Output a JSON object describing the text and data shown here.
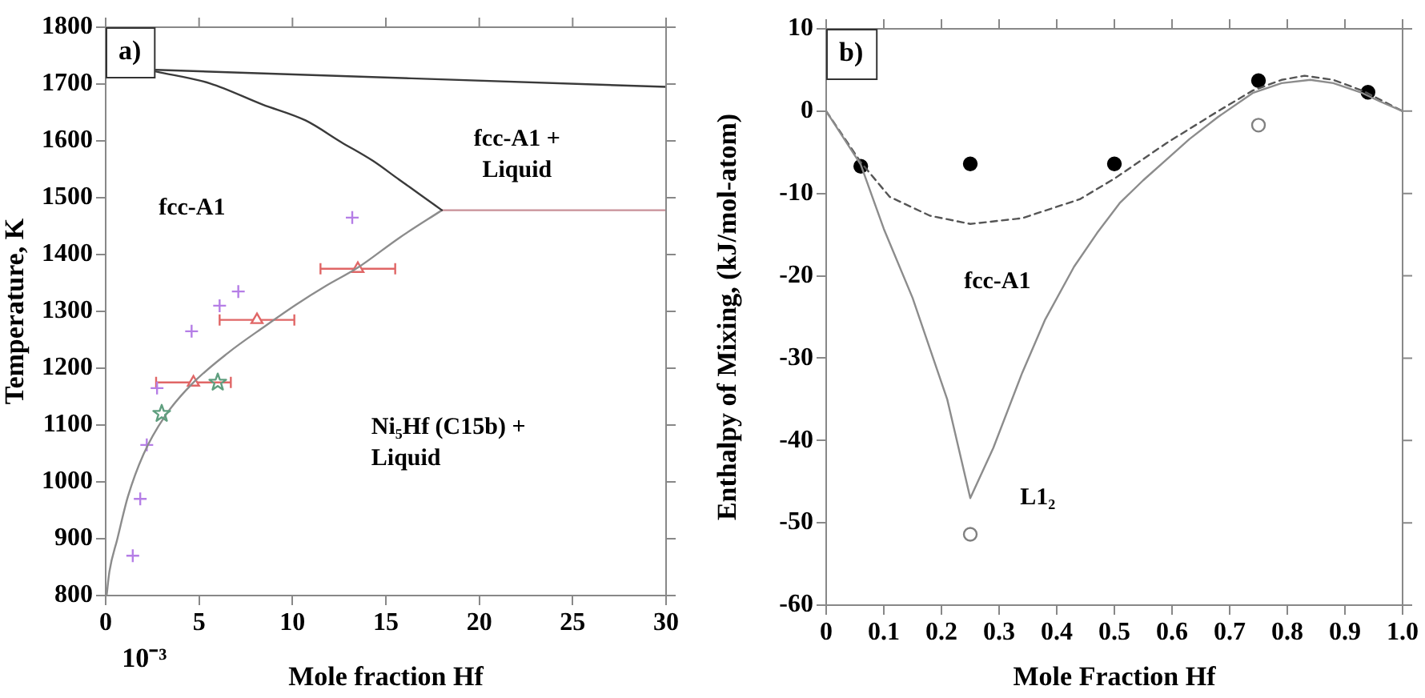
{
  "chart_data": [
    {
      "type": "line",
      "xlabel": "Mole fraction Hf",
      "ylabel": "Temperature, K",
      "xlim": [
        0,
        30
      ],
      "xticks": [
        0,
        5,
        10,
        15,
        20,
        25,
        30
      ],
      "ylim": [
        800,
        1800
      ],
      "yticks": [
        800,
        900,
        1000,
        1100,
        1200,
        1300,
        1400,
        1500,
        1600,
        1700,
        1800
      ],
      "annotations": [
        "a)",
        "fcc-A1",
        "fcc-A1 + Liquid",
        "Ni₅Hf (C15b) + Liquid",
        "10⁻³"
      ],
      "series": [
        {
          "color": "#3a3a3a",
          "x": [
            2.7,
            30
          ],
          "values": [
            1725,
            1695
          ]
        },
        {
          "color": "#3a3a3a",
          "x": [
            2.7,
            5.6,
            8.4,
            10.7,
            12.6,
            14.3,
            15.7,
            16.9,
            18
          ],
          "values": [
            1722,
            1701,
            1664,
            1636,
            1598,
            1565,
            1532,
            1504,
            1478
          ]
        },
        {
          "color": "#c89098",
          "x": [
            18,
            30
          ],
          "values": [
            1478,
            1478
          ]
        },
        {
          "color": "#8c8c8c",
          "x": [
            0.05,
            0.2,
            0.62,
            1.19,
            2.03,
            3.16,
            4.58,
            6.55,
            8.53,
            10.2,
            11.8,
            13.5,
            15.7,
            18
          ],
          "values": [
            800,
            842,
            899,
            974,
            1049,
            1115,
            1171,
            1227,
            1274,
            1312,
            1345,
            1377,
            1429,
            1478
          ]
        },
        {
          "type": "scatter",
          "color": "#b57ee6",
          "marker": "cross",
          "x": [
            1.45,
            1.85,
            2.2,
            2.75,
            4.6,
            6.1,
            7.1,
            13.2
          ],
          "values": [
            870,
            970,
            1065,
            1165,
            1265,
            1310,
            1335,
            1465
          ]
        },
        {
          "type": "scatter",
          "color": "#5f9f7f",
          "marker": "star",
          "x": [
            3,
            6
          ],
          "values": [
            1120,
            1175
          ]
        },
        {
          "type": "scatter",
          "color": "#e06666",
          "marker": "triangle",
          "x": [
            4.7,
            8.1,
            13.5
          ],
          "values": [
            1175,
            1285,
            1375
          ],
          "xerrors": [
            2,
            2,
            2
          ]
        }
      ]
    },
    {
      "type": "line",
      "xlabel": "Mole Fraction Hf",
      "ylabel": "Enthalpy of Mixing, (kJ/mol-atom)",
      "xlim": [
        0,
        1
      ],
      "xticks": [
        0,
        0.1,
        0.2,
        0.3,
        0.4,
        0.5,
        0.6,
        0.7,
        0.8,
        0.9,
        {
          "value": 1,
          "label": "1.0"
        }
      ],
      "ylim": [
        -60,
        10
      ],
      "yticks": [
        -60,
        -50,
        -40,
        -30,
        -20,
        -10,
        0,
        10
      ],
      "annotations": [
        "b)",
        "fcc-A1",
        "L1₂"
      ],
      "series": [
        {
          "color": "#8c8c8c",
          "x": [
            0,
            0.06,
            0.1,
            0.15,
            0.21,
            0.25,
            0.29,
            0.34,
            0.38,
            0.43,
            0.47,
            0.51,
            0.55,
            0.59,
            0.63,
            0.68,
            0.74,
            0.79,
            0.84,
            0.88,
            0.93,
            0.96,
            1
          ],
          "values": [
            0,
            -6.5,
            -14.3,
            -22.7,
            -35,
            -47,
            -40.9,
            -31.8,
            -25.3,
            -18.9,
            -14.8,
            -11.1,
            -8.4,
            -5.9,
            -3.4,
            -0.7,
            2.2,
            3.4,
            3.8,
            3.4,
            2.2,
            1.2,
            0
          ]
        },
        {
          "color": "#555555",
          "line_style": "dashed",
          "x": [
            0,
            0.06,
            0.11,
            0.18,
            0.25,
            0.34,
            0.44,
            0.5,
            0.59,
            0.68,
            0.74,
            0.79,
            0.83,
            0.88,
            0.93,
            1
          ],
          "values": [
            0,
            -6.2,
            -10.4,
            -12.7,
            -13.7,
            -13,
            -10.7,
            -8.2,
            -3.9,
            0,
            2.5,
            3.8,
            4.3,
            3.8,
            2.5,
            0
          ]
        },
        {
          "type": "scatter",
          "color": "#000000",
          "marker": "circle",
          "x": [
            0.06,
            0.25,
            0.5,
            0.75,
            0.94
          ],
          "values": [
            -6.7,
            -6.4,
            -6.4,
            3.7,
            2.3
          ]
        },
        {
          "type": "scatter",
          "color": "#808080",
          "marker": "circle",
          "x": [
            0.75,
            0.25
          ],
          "values": [
            -1.7,
            -51.4
          ]
        }
      ]
    }
  ]
}
